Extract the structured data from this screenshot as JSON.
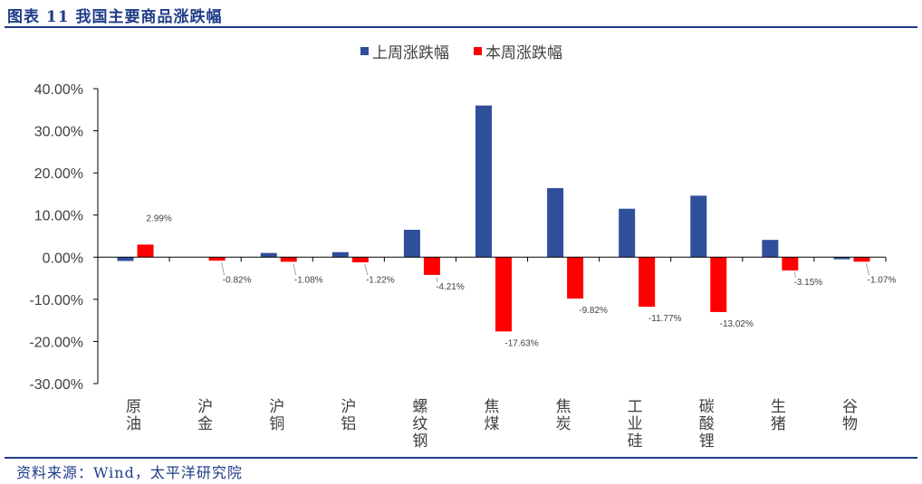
{
  "figure": {
    "title": "图表 11 我国主要商品涨跌幅",
    "source": "资料来源：Wind，太平洋研究院"
  },
  "chart_data": {
    "type": "bar",
    "title": "",
    "xlabel": "",
    "ylabel": "",
    "categories": [
      "原油",
      "沪金",
      "沪铜",
      "沪铝",
      "螺纹钢",
      "焦煤",
      "焦炭",
      "工业硅",
      "碳酸锂",
      "生猪",
      "谷物"
    ],
    "series": [
      {
        "name": "上周涨跌幅",
        "color": "#2f4f9a",
        "values": [
          -0.9,
          0.0,
          1.0,
          1.2,
          6.5,
          36.0,
          16.4,
          11.5,
          14.6,
          4.1,
          -0.5
        ]
      },
      {
        "name": "本周涨跌幅",
        "color": "#ff0000",
        "values": [
          2.99,
          -0.82,
          -1.08,
          -1.22,
          -4.21,
          -17.63,
          -9.82,
          -11.77,
          -13.02,
          -3.15,
          -1.07
        ],
        "labels": [
          "2.99%",
          "-0.82%",
          "-1.08%",
          "-1.22%",
          "-4.21%",
          "-17.63%",
          "-9.82%",
          "-11.77%",
          "-13.02%",
          "-3.15%",
          "-1.07%"
        ]
      }
    ],
    "ylim": [
      -30,
      40
    ],
    "yticks": [
      40,
      30,
      20,
      10,
      0,
      -10,
      -20,
      -30
    ],
    "ytick_labels": [
      "40.00%",
      "30.00%",
      "20.00%",
      "10.00%",
      "0.00%",
      "-10.00%",
      "-20.00%",
      "-30.00%"
    ],
    "legend_position": "top-center",
    "grid": false
  }
}
